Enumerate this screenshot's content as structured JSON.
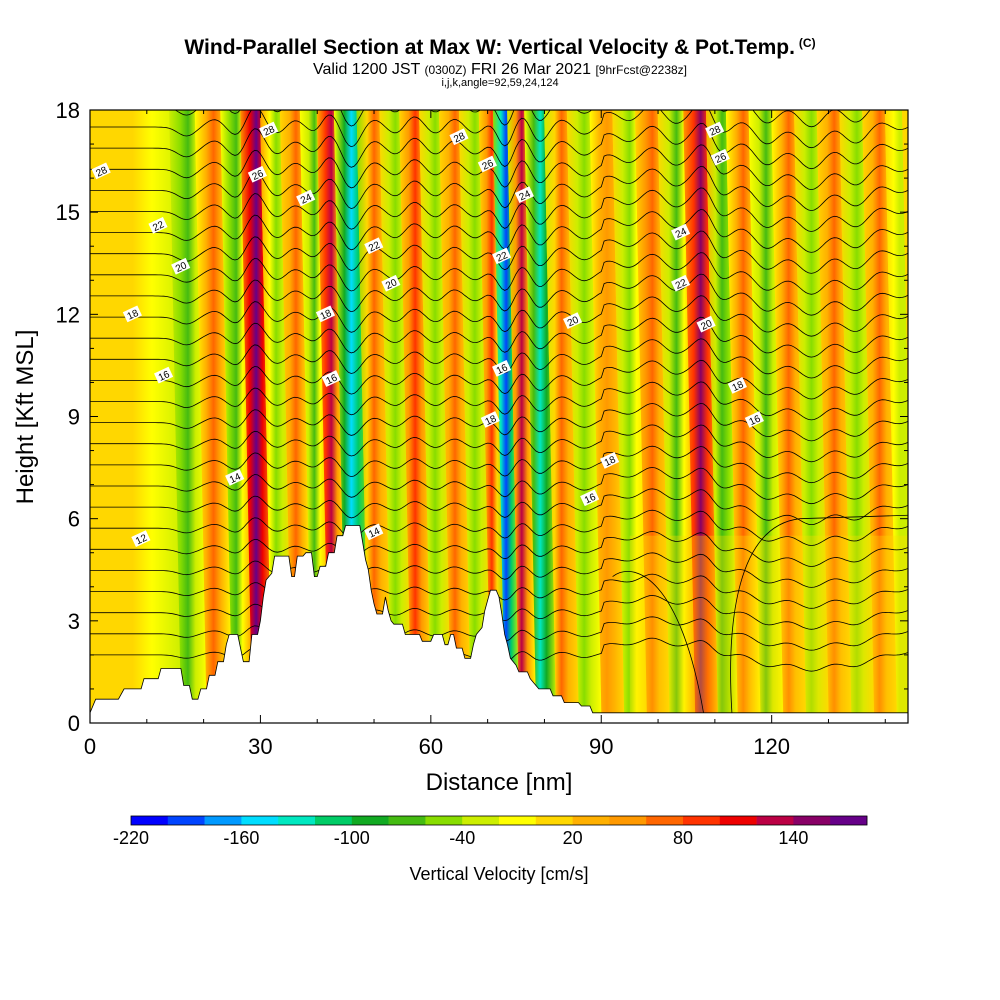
{
  "title": {
    "main": "Wind-Parallel Section at Max W: Vertical Velocity & Pot.Temp.",
    "copyright": "(C)",
    "valid_prefix": "Valid 1200 JST",
    "utc": "(0300Z)",
    "date": "FRI 26 Mar 2021",
    "forecast": "[9hrFcst@2238z]",
    "indices": "i,j,k,angle=92,59,24,124"
  },
  "chart_data": {
    "type": "heatmap",
    "xlabel": "Distance [nm]",
    "ylabel": "Height [Kft MSL]",
    "xlim": [
      0,
      144
    ],
    "ylim": [
      0,
      18
    ],
    "x_ticks": [
      0,
      30,
      60,
      90,
      120
    ],
    "x_tick_labels": [
      "0",
      "30",
      "60",
      "90",
      "120"
    ],
    "y_ticks": [
      0,
      3,
      6,
      9,
      12,
      15,
      18
    ],
    "y_tick_labels": [
      "0",
      "3",
      "6",
      "9",
      "12",
      "15",
      "18"
    ],
    "colorbar": {
      "label": "Vertical Velocity [cm/s]",
      "min": -220,
      "max": 180,
      "step": 20,
      "tick_values": [
        -220,
        -160,
        -100,
        -40,
        20,
        80,
        140
      ],
      "tick_labels": [
        "-220",
        "-160",
        "-100",
        "-40",
        "20",
        "80",
        "140"
      ],
      "colors": [
        "#0000ff",
        "#0044ff",
        "#0099ff",
        "#00ddff",
        "#00e8c0",
        "#00cc66",
        "#11aa22",
        "#44bb11",
        "#88dd00",
        "#ccee00",
        "#ffff00",
        "#ffd700",
        "#ffb000",
        "#ff9900",
        "#ff6600",
        "#ff3300",
        "#ee0000",
        "#bb0044",
        "#880066",
        "#660088"
      ]
    },
    "updraft_bands": [
      {
        "x": 13,
        "w": 0
      },
      {
        "x": 17,
        "w": -70
      },
      {
        "x": 22,
        "w": 60
      },
      {
        "x": 26,
        "w": -80
      },
      {
        "x": 29,
        "w": 170
      },
      {
        "x": 33,
        "w": -60
      },
      {
        "x": 36,
        "w": 60
      },
      {
        "x": 40,
        "w": -70
      },
      {
        "x": 42,
        "w": 130
      },
      {
        "x": 46,
        "w": -160
      },
      {
        "x": 50,
        "w": 60
      },
      {
        "x": 54,
        "w": -60
      },
      {
        "x": 57,
        "w": 90
      },
      {
        "x": 61,
        "w": -60
      },
      {
        "x": 64,
        "w": 70
      },
      {
        "x": 68,
        "w": -60
      },
      {
        "x": 71,
        "w": 80
      },
      {
        "x": 73,
        "w": -200
      },
      {
        "x": 76,
        "w": 120
      },
      {
        "x": 79,
        "w": -130
      },
      {
        "x": 83,
        "w": 60
      },
      {
        "x": 87,
        "w": -60
      },
      {
        "x": 91,
        "w": 50
      },
      {
        "x": 95,
        "w": -50
      },
      {
        "x": 99,
        "w": 70
      },
      {
        "x": 103,
        "w": -70
      },
      {
        "x": 108,
        "w": 150
      },
      {
        "x": 111,
        "w": -80
      },
      {
        "x": 115,
        "w": 60
      },
      {
        "x": 119,
        "w": -70
      },
      {
        "x": 123,
        "w": 60
      },
      {
        "x": 127,
        "w": -60
      },
      {
        "x": 131,
        "w": 70
      },
      {
        "x": 135,
        "w": -60
      },
      {
        "x": 139,
        "w": 60
      },
      {
        "x": 143,
        "w": -40
      }
    ],
    "theta_contours": {
      "levels_labelled": [
        12,
        14,
        16,
        18,
        20,
        22,
        24,
        26,
        28
      ],
      "labels": [
        {
          "text": "28",
          "x": 2,
          "y": 16.2
        },
        {
          "text": "22",
          "x": 12,
          "y": 14.6
        },
        {
          "text": "20",
          "x": 16,
          "y": 13.4
        },
        {
          "text": "18",
          "x": 7.5,
          "y": 12.0
        },
        {
          "text": "16",
          "x": 13,
          "y": 10.2
        },
        {
          "text": "12",
          "x": 9,
          "y": 5.4
        },
        {
          "text": "14",
          "x": 25.5,
          "y": 7.2
        },
        {
          "text": "26",
          "x": 29.5,
          "y": 16.1
        },
        {
          "text": "28",
          "x": 31.5,
          "y": 17.4
        },
        {
          "text": "24",
          "x": 38,
          "y": 15.4
        },
        {
          "text": "18",
          "x": 41.5,
          "y": 12.0
        },
        {
          "text": "16",
          "x": 42.5,
          "y": 10.1
        },
        {
          "text": "22",
          "x": 50,
          "y": 14.0
        },
        {
          "text": "20",
          "x": 53,
          "y": 12.9
        },
        {
          "text": "14",
          "x": 50,
          "y": 5.6
        },
        {
          "text": "28",
          "x": 65,
          "y": 17.2
        },
        {
          "text": "26",
          "x": 70,
          "y": 16.4
        },
        {
          "text": "24",
          "x": 76.5,
          "y": 15.5
        },
        {
          "text": "22",
          "x": 72.5,
          "y": 13.7
        },
        {
          "text": "16",
          "x": 72.5,
          "y": 10.4
        },
        {
          "text": "18",
          "x": 70.5,
          "y": 8.9
        },
        {
          "text": "20",
          "x": 85,
          "y": 11.8
        },
        {
          "text": "18",
          "x": 91.5,
          "y": 7.7
        },
        {
          "text": "16",
          "x": 88,
          "y": 6.6
        },
        {
          "text": "24",
          "x": 104,
          "y": 14.4
        },
        {
          "text": "22",
          "x": 104,
          "y": 12.9
        },
        {
          "text": "28",
          "x": 110,
          "y": 17.4
        },
        {
          "text": "26",
          "x": 111,
          "y": 16.6
        },
        {
          "text": "20",
          "x": 108.5,
          "y": 11.7
        },
        {
          "text": "18",
          "x": 114,
          "y": 9.9
        },
        {
          "text": "16",
          "x": 117,
          "y": 8.9
        }
      ]
    },
    "terrain_kft": [
      [
        0,
        0.3
      ],
      [
        1,
        0.7
      ],
      [
        5,
        0.7
      ],
      [
        6,
        1.0
      ],
      [
        9,
        1.0
      ],
      [
        9.5,
        1.3
      ],
      [
        12,
        1.3
      ],
      [
        12.5,
        1.6
      ],
      [
        16,
        1.6
      ],
      [
        16.5,
        1.1
      ],
      [
        17.5,
        1.1
      ],
      [
        18,
        0.7
      ],
      [
        19,
        0.7
      ],
      [
        19.5,
        1.0
      ],
      [
        20.5,
        1.0
      ],
      [
        21,
        1.4
      ],
      [
        22,
        1.4
      ],
      [
        22.5,
        1.8
      ],
      [
        23.5,
        1.8
      ],
      [
        24,
        2.3
      ],
      [
        24.5,
        2.6
      ],
      [
        26,
        2.6
      ],
      [
        26.5,
        2.2
      ],
      [
        27,
        1.8
      ],
      [
        28,
        1.8
      ],
      [
        28.5,
        2.6
      ],
      [
        29.5,
        2.6
      ],
      [
        30,
        3.0
      ],
      [
        30.5,
        3.7
      ],
      [
        31,
        4.2
      ],
      [
        32,
        4.4
      ],
      [
        32.5,
        4.9
      ],
      [
        35,
        4.9
      ],
      [
        35.5,
        4.3
      ],
      [
        36,
        4.3
      ],
      [
        36.5,
        4.9
      ],
      [
        37.5,
        4.9
      ],
      [
        38,
        5.0
      ],
      [
        39,
        5.0
      ],
      [
        39.5,
        4.3
      ],
      [
        40,
        4.3
      ],
      [
        40.5,
        4.6
      ],
      [
        41.5,
        4.6
      ],
      [
        42,
        5.0
      ],
      [
        43,
        5.0
      ],
      [
        43.5,
        5.5
      ],
      [
        44.5,
        5.5
      ],
      [
        45,
        5.8
      ],
      [
        47.5,
        5.8
      ],
      [
        48,
        5.3
      ],
      [
        48.5,
        4.8
      ],
      [
        49,
        4.5
      ],
      [
        49.5,
        3.9
      ],
      [
        50,
        3.5
      ],
      [
        50.5,
        3.2
      ],
      [
        51.5,
        3.2
      ],
      [
        52,
        3.7
      ],
      [
        52.5,
        3.3
      ],
      [
        53,
        3.0
      ],
      [
        53.5,
        2.9
      ],
      [
        55,
        2.9
      ],
      [
        55.5,
        2.6
      ],
      [
        58,
        2.6
      ],
      [
        58.5,
        2.4
      ],
      [
        60,
        2.4
      ],
      [
        60.5,
        2.6
      ],
      [
        62,
        2.6
      ],
      [
        62.5,
        2.3
      ],
      [
        63,
        2.3
      ],
      [
        63.5,
        2.6
      ],
      [
        64,
        2.6
      ],
      [
        64.5,
        2.2
      ],
      [
        65.5,
        2.2
      ],
      [
        66,
        1.9
      ],
      [
        67,
        1.9
      ],
      [
        67.5,
        2.3
      ],
      [
        68,
        2.6
      ],
      [
        69,
        2.8
      ],
      [
        69.5,
        3.3
      ],
      [
        70,
        3.6
      ],
      [
        70.5,
        3.9
      ],
      [
        71.5,
        3.9
      ],
      [
        72,
        3.7
      ],
      [
        72.5,
        3.2
      ],
      [
        73,
        2.6
      ],
      [
        73.5,
        2.3
      ],
      [
        74,
        1.9
      ],
      [
        75,
        1.7
      ],
      [
        75.5,
        1.5
      ],
      [
        77,
        1.5
      ],
      [
        77.5,
        1.3
      ],
      [
        78,
        1.2
      ],
      [
        79,
        1.0
      ],
      [
        81,
        1.0
      ],
      [
        81.5,
        0.8
      ],
      [
        83,
        0.8
      ],
      [
        83.5,
        0.6
      ],
      [
        86,
        0.6
      ],
      [
        86.5,
        0.5
      ],
      [
        88,
        0.5
      ],
      [
        88.5,
        0.3
      ],
      [
        144,
        0.3
      ]
    ]
  }
}
